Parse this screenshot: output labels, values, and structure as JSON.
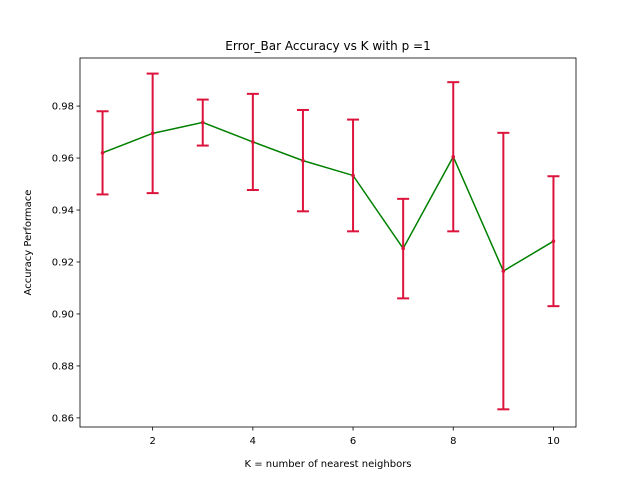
{
  "chart_data": {
    "type": "line",
    "title": "Error_Bar Accuracy vs K with p =1",
    "xlabel": "K = number of nearest neighbors",
    "ylabel": "Accuracy Performace",
    "xlim": [
      0.55,
      10.45
    ],
    "ylim": [
      0.8565,
      0.9985
    ],
    "xticks": [
      2,
      4,
      6,
      8,
      10
    ],
    "xtick_labels": [
      "2",
      "4",
      "6",
      "8",
      "10"
    ],
    "yticks": [
      0.86,
      0.88,
      0.9,
      0.92,
      0.94,
      0.96,
      0.98
    ],
    "ytick_labels": [
      "0.86",
      "0.88",
      "0.90",
      "0.92",
      "0.94",
      "0.96",
      "0.98"
    ],
    "grid": false,
    "x": [
      1,
      2,
      3,
      4,
      5,
      6,
      7,
      8,
      9,
      10
    ],
    "series": [
      {
        "values": [
          0.962,
          0.9695,
          0.9737,
          0.9662,
          0.959,
          0.9533,
          0.9252,
          0.9605,
          0.9165,
          0.928
        ],
        "error_low": [
          0.946,
          0.9465,
          0.9648,
          0.9477,
          0.9395,
          0.9318,
          0.906,
          0.9318,
          0.8633,
          0.903
        ],
        "error_high": [
          0.978,
          0.9925,
          0.9825,
          0.9847,
          0.9785,
          0.9748,
          0.9443,
          0.9892,
          0.9697,
          0.953
        ],
        "line_color": "#008000",
        "errorbar_color": "#dc143c"
      }
    ]
  }
}
